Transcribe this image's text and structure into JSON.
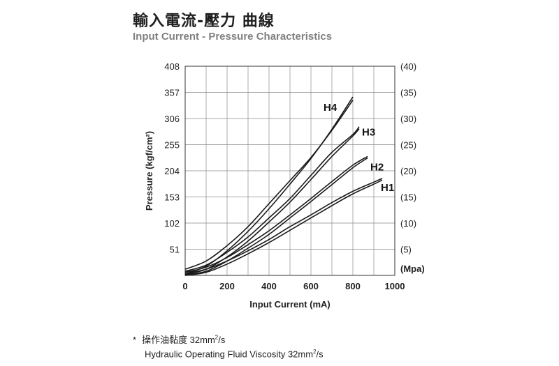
{
  "title_zh": "輸入電流-壓力 曲線",
  "title_en": "Input Current - Pressure Characteristics",
  "note": {
    "marker": "*",
    "zh_prefix": "操作油黏度 32mm",
    "zh_sup": "2",
    "zh_suffix": "/s",
    "en_prefix": "Hydraulic Operating Fluid Viscosity 32mm",
    "en_sup": "2",
    "en_suffix": "/s"
  },
  "chart_data": {
    "type": "line",
    "title": "",
    "xlabel": "Input Current (mA)",
    "ylabel": "Pressure (kgf/cm²)",
    "y2label": "(Mpa)",
    "xlim": [
      0,
      1000
    ],
    "ylim": [
      0,
      408
    ],
    "x_ticks": [
      0,
      200,
      400,
      600,
      800,
      1000
    ],
    "y_ticks": [
      51,
      102,
      153,
      204,
      255,
      306,
      357,
      408
    ],
    "y2_ticks": [
      "(5)",
      "(10)",
      "(15)",
      "(20)",
      "(25)",
      "(30)",
      "(35)",
      "(40)"
    ],
    "grid": true,
    "series": [
      {
        "name": "H4",
        "upper": [
          [
            0,
            12
          ],
          [
            100,
            28
          ],
          [
            200,
            58
          ],
          [
            300,
            95
          ],
          [
            400,
            140
          ],
          [
            500,
            185
          ],
          [
            600,
            230
          ],
          [
            700,
            283
          ],
          [
            800,
            342
          ]
        ],
        "lower": [
          [
            0,
            3
          ],
          [
            100,
            18
          ],
          [
            200,
            48
          ],
          [
            300,
            86
          ],
          [
            400,
            130
          ],
          [
            500,
            178
          ],
          [
            600,
            228
          ],
          [
            700,
            285
          ],
          [
            800,
            348
          ]
        ]
      },
      {
        "name": "H3",
        "upper": [
          [
            0,
            8
          ],
          [
            100,
            20
          ],
          [
            200,
            45
          ],
          [
            300,
            75
          ],
          [
            400,
            112
          ],
          [
            500,
            150
          ],
          [
            600,
            195
          ],
          [
            700,
            240
          ],
          [
            800,
            275
          ],
          [
            830,
            290
          ]
        ],
        "lower": [
          [
            0,
            2
          ],
          [
            100,
            12
          ],
          [
            200,
            36
          ],
          [
            300,
            67
          ],
          [
            400,
            104
          ],
          [
            500,
            143
          ],
          [
            600,
            187
          ],
          [
            700,
            232
          ],
          [
            800,
            272
          ],
          [
            830,
            286
          ]
        ]
      },
      {
        "name": "H2",
        "upper": [
          [
            0,
            6
          ],
          [
            100,
            16
          ],
          [
            200,
            35
          ],
          [
            300,
            60
          ],
          [
            400,
            87
          ],
          [
            500,
            118
          ],
          [
            600,
            150
          ],
          [
            700,
            183
          ],
          [
            800,
            215
          ],
          [
            870,
            232
          ]
        ],
        "lower": [
          [
            0,
            1
          ],
          [
            100,
            8
          ],
          [
            200,
            28
          ],
          [
            300,
            53
          ],
          [
            400,
            80
          ],
          [
            500,
            112
          ],
          [
            600,
            144
          ],
          [
            700,
            177
          ],
          [
            800,
            210
          ],
          [
            870,
            229
          ]
        ]
      },
      {
        "name": "H1",
        "upper": [
          [
            0,
            3
          ],
          [
            100,
            12
          ],
          [
            200,
            28
          ],
          [
            300,
            48
          ],
          [
            400,
            70
          ],
          [
            500,
            95
          ],
          [
            600,
            118
          ],
          [
            700,
            142
          ],
          [
            800,
            164
          ],
          [
            900,
            182
          ],
          [
            940,
            189
          ]
        ],
        "lower": [
          [
            0,
            0
          ],
          [
            100,
            6
          ],
          [
            200,
            22
          ],
          [
            300,
            42
          ],
          [
            400,
            64
          ],
          [
            500,
            88
          ],
          [
            600,
            112
          ],
          [
            700,
            136
          ],
          [
            800,
            159
          ],
          [
            900,
            178
          ],
          [
            940,
            186
          ]
        ]
      }
    ]
  }
}
